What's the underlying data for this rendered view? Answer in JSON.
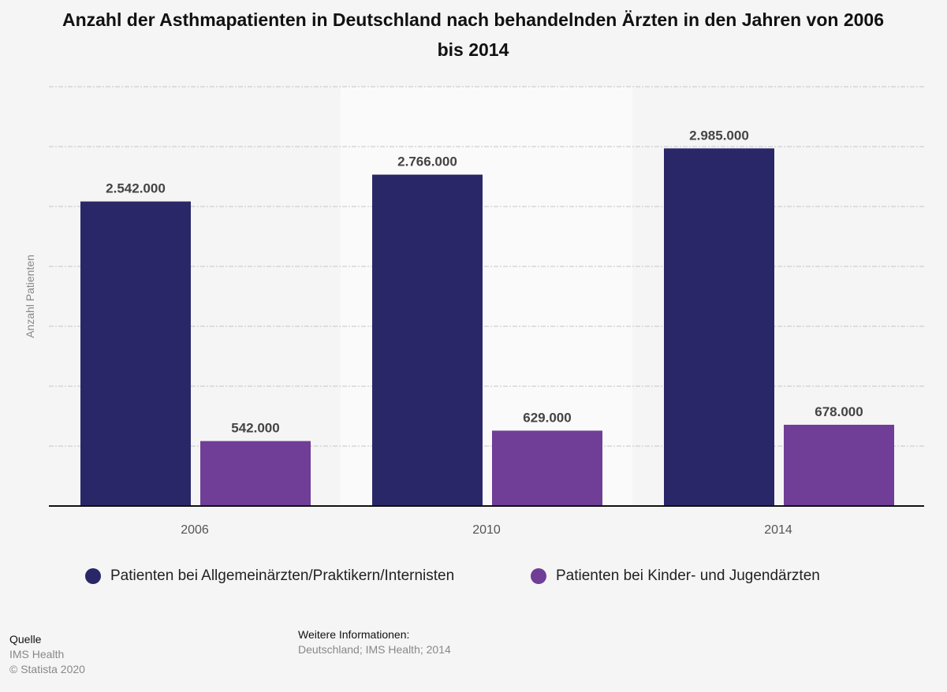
{
  "chart_data": {
    "type": "bar",
    "title": "Anzahl der Asthmapatienten in Deutschland nach behandelnden Ärzten in den Jahren von 2006 bis 2014",
    "xlabel": "",
    "ylabel": "Anzahl Patienten",
    "ylim": [
      0,
      3500000
    ],
    "grid": true,
    "legend_position": "bottom",
    "categories": [
      "2006",
      "2010",
      "2014"
    ],
    "series": [
      {
        "name": "Patienten bei Allgemeinärzten/Praktikern/Internisten",
        "color": "#2a2769",
        "values": [
          2542000,
          2766000,
          2985000
        ],
        "labels": [
          "2.542.000",
          "2.766.000",
          "2.985.000"
        ]
      },
      {
        "name": "Patienten bei Kinder- und Jugendärzten",
        "color": "#703d97",
        "values": [
          542000,
          629000,
          678000
        ],
        "labels": [
          "542.000",
          "629.000",
          "678.000"
        ]
      }
    ]
  },
  "footer": {
    "source_label": "Quelle",
    "source": "IMS Health",
    "copyright": "© Statista 2020",
    "info_label": "Weitere Informationen:",
    "info": "Deutschland; IMS Health; 2014"
  }
}
